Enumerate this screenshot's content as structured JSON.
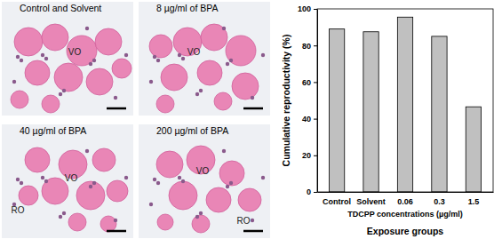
{
  "chart_data": {
    "type": "bar",
    "categories": [
      "Control",
      "Solvent",
      "0.06",
      "0.3",
      "1.5"
    ],
    "values": [
      89,
      87.5,
      95.5,
      85,
      46.5
    ],
    "color": "#c0c0c0",
    "x_label": "Exposure groups",
    "x_annotation": "TDCPP concentrations (µg/ml)",
    "y_label": "Cumulative reproductivity (%)",
    "ylim": [
      0,
      100
    ],
    "yticks": [
      0,
      20,
      40,
      60,
      80,
      100
    ],
    "grid": false
  },
  "panels": [
    {
      "title": "Control and Solvent",
      "labels": [
        "VO"
      ]
    },
    {
      "title": "8 µg/ml of BPA",
      "labels": [
        "VO"
      ]
    },
    {
      "title": "40 µg/ml of BPA",
      "labels": [
        "VO",
        "RO"
      ]
    },
    {
      "title": "200 µg/ml of BPA",
      "labels": [
        "VO",
        "RO"
      ]
    }
  ]
}
